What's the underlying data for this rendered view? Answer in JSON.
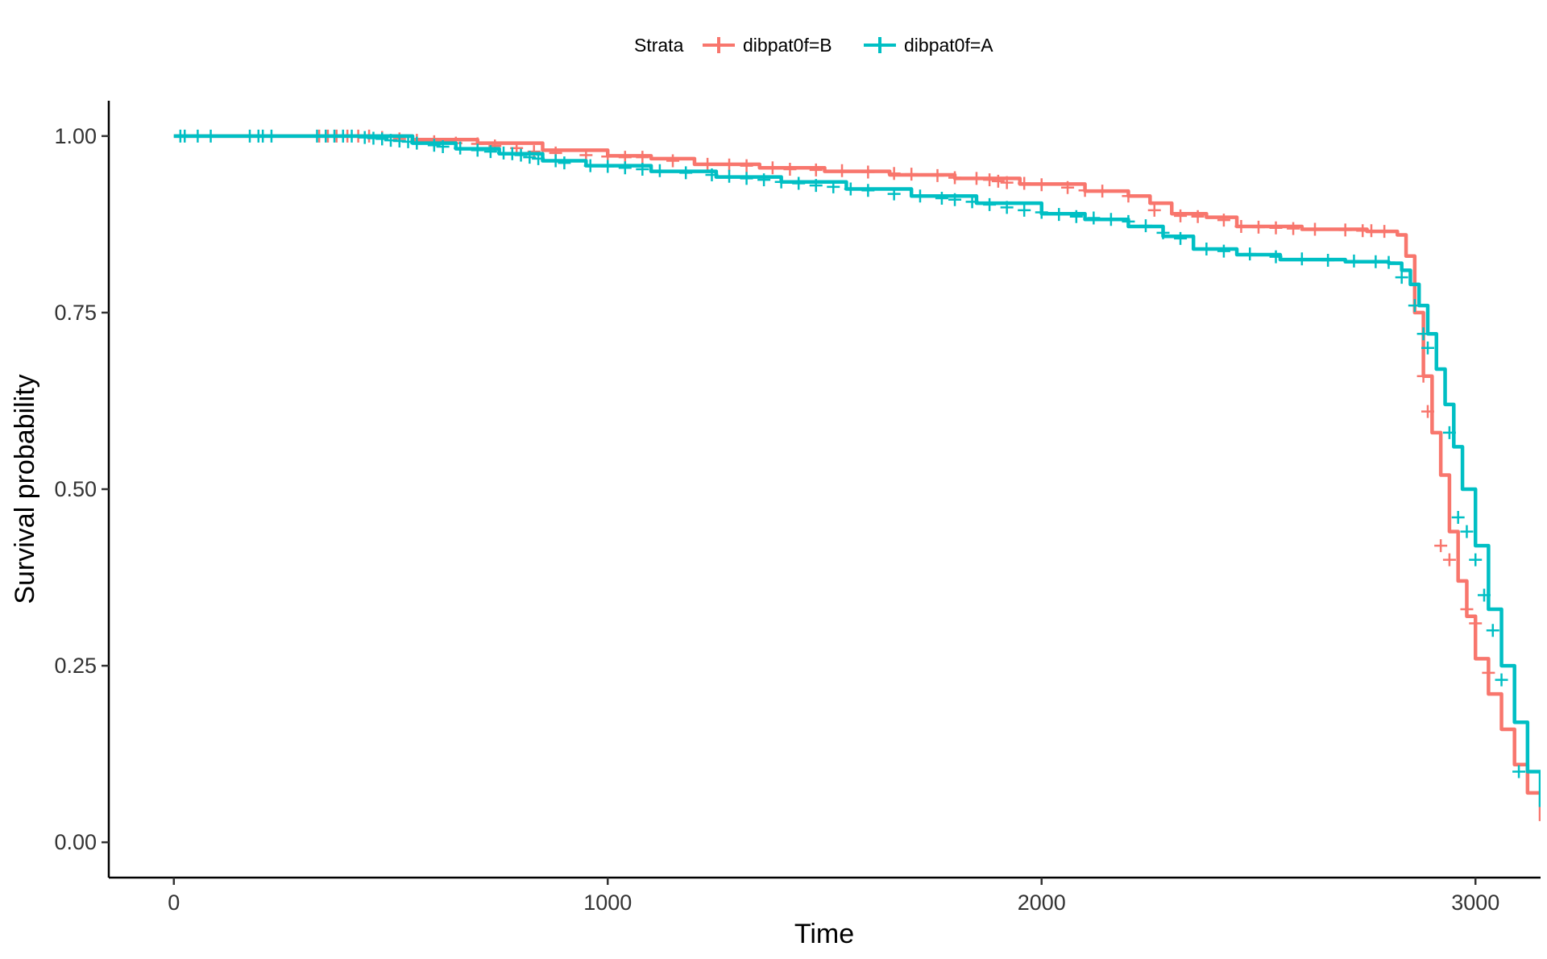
{
  "chart_data": {
    "type": "line",
    "subtype": "kaplan-meier survival curve",
    "xlabel": "Time",
    "ylabel": "Survival probability",
    "xlim": [
      -150,
      3150
    ],
    "ylim": [
      -0.05,
      1.05
    ],
    "xticks": [
      0,
      1000,
      2000,
      3000
    ],
    "xtick_labels": [
      "0",
      "1000",
      "2000",
      "3000"
    ],
    "yticks": [
      0,
      0.25,
      0.5,
      0.75,
      1.0
    ],
    "ytick_labels": [
      "0.00",
      "0.25",
      "0.50",
      "0.75",
      "1.00"
    ],
    "grid": false,
    "legend": {
      "title": "Strata",
      "position": "top"
    },
    "series": [
      {
        "name": "dibpat0f=B",
        "color": "#F8766D",
        "x": [
          0,
          450,
          550,
          700,
          850,
          1000,
          1100,
          1200,
          1350,
          1500,
          1650,
          1800,
          1950,
          2100,
          2200,
          2250,
          2300,
          2380,
          2450,
          2600,
          2750,
          2820,
          2840,
          2860,
          2880,
          2900,
          2920,
          2940,
          2960,
          2980,
          3000,
          3030,
          3060,
          3090,
          3120,
          3150
        ],
        "y": [
          1.0,
          1.0,
          0.995,
          0.99,
          0.98,
          0.972,
          0.968,
          0.96,
          0.955,
          0.95,
          0.945,
          0.94,
          0.932,
          0.922,
          0.915,
          0.905,
          0.89,
          0.885,
          0.872,
          0.868,
          0.865,
          0.86,
          0.83,
          0.75,
          0.66,
          0.58,
          0.52,
          0.44,
          0.37,
          0.32,
          0.26,
          0.21,
          0.16,
          0.11,
          0.07,
          0.03
        ],
        "censor_x": [
          335,
          355,
          375,
          400,
          425,
          450,
          480,
          520,
          560,
          600,
          650,
          700,
          740,
          790,
          830,
          880,
          950,
          1000,
          1040,
          1080,
          1150,
          1230,
          1280,
          1320,
          1380,
          1420,
          1480,
          1540,
          1600,
          1660,
          1700,
          1760,
          1800,
          1850,
          1880,
          1900,
          1920,
          1960,
          2000,
          2060,
          2100,
          2140,
          2200,
          2260,
          2320,
          2360,
          2420,
          2460,
          2500,
          2540,
          2580,
          2630,
          2700,
          2740,
          2760,
          2790,
          2880,
          2890,
          2920,
          2940,
          2980,
          3000,
          3030
        ],
        "censor_y": [
          1.0,
          1.0,
          1.0,
          1.0,
          1.0,
          1.0,
          0.998,
          0.996,
          0.994,
          0.992,
          0.99,
          0.989,
          0.986,
          0.983,
          0.978,
          0.976,
          0.973,
          0.971,
          0.97,
          0.97,
          0.965,
          0.96,
          0.959,
          0.958,
          0.955,
          0.953,
          0.952,
          0.951,
          0.949,
          0.947,
          0.946,
          0.944,
          0.941,
          0.94,
          0.938,
          0.936,
          0.934,
          0.933,
          0.931,
          0.927,
          0.923,
          0.922,
          0.915,
          0.895,
          0.887,
          0.886,
          0.881,
          0.872,
          0.871,
          0.87,
          0.869,
          0.868,
          0.867,
          0.866,
          0.866,
          0.865,
          0.66,
          0.61,
          0.42,
          0.4,
          0.33,
          0.31,
          0.24
        ]
      },
      {
        "name": "dibpat0f=A",
        "color": "#00BFC4",
        "x": [
          0,
          450,
          550,
          650,
          750,
          850,
          950,
          1100,
          1250,
          1400,
          1550,
          1700,
          1850,
          2000,
          2100,
          2200,
          2280,
          2350,
          2450,
          2550,
          2700,
          2800,
          2830,
          2850,
          2870,
          2890,
          2910,
          2930,
          2950,
          2970,
          3000,
          3030,
          3060,
          3090,
          3120,
          3150
        ],
        "y": [
          1.0,
          1.0,
          0.99,
          0.982,
          0.975,
          0.965,
          0.958,
          0.95,
          0.942,
          0.935,
          0.925,
          0.915,
          0.905,
          0.89,
          0.882,
          0.872,
          0.858,
          0.84,
          0.832,
          0.825,
          0.822,
          0.82,
          0.81,
          0.79,
          0.76,
          0.72,
          0.67,
          0.62,
          0.56,
          0.5,
          0.42,
          0.33,
          0.25,
          0.17,
          0.1,
          0.05
        ],
        "censor_x": [
          15,
          25,
          55,
          85,
          175,
          195,
          205,
          225,
          330,
          350,
          370,
          390,
          410,
          440,
          460,
          480,
          500,
          520,
          540,
          560,
          600,
          620,
          660,
          700,
          730,
          760,
          780,
          800,
          820,
          840,
          880,
          900,
          960,
          1000,
          1040,
          1080,
          1120,
          1180,
          1240,
          1280,
          1320,
          1360,
          1400,
          1440,
          1480,
          1520,
          1560,
          1600,
          1660,
          1720,
          1770,
          1800,
          1840,
          1880,
          1920,
          1960,
          2000,
          2040,
          2080,
          2120,
          2160,
          2200,
          2240,
          2280,
          2320,
          2380,
          2420,
          2480,
          2540,
          2600,
          2660,
          2720,
          2770,
          2800,
          2830,
          2860,
          2880,
          2890,
          2940,
          2960,
          2980,
          3000,
          3020,
          3040,
          3060,
          3100
        ],
        "censor_y": [
          1.0,
          1.0,
          1.0,
          1.0,
          1.0,
          1.0,
          1.0,
          1.0,
          1.0,
          1.0,
          1.0,
          1.0,
          1.0,
          0.998,
          0.997,
          0.996,
          0.994,
          0.993,
          0.992,
          0.99,
          0.987,
          0.985,
          0.983,
          0.98,
          0.978,
          0.976,
          0.975,
          0.973,
          0.97,
          0.968,
          0.965,
          0.962,
          0.958,
          0.957,
          0.955,
          0.953,
          0.951,
          0.948,
          0.945,
          0.943,
          0.94,
          0.938,
          0.935,
          0.933,
          0.93,
          0.928,
          0.925,
          0.923,
          0.918,
          0.915,
          0.912,
          0.91,
          0.907,
          0.903,
          0.899,
          0.895,
          0.892,
          0.889,
          0.886,
          0.884,
          0.882,
          0.879,
          0.873,
          0.863,
          0.855,
          0.84,
          0.837,
          0.833,
          0.829,
          0.826,
          0.824,
          0.823,
          0.822,
          0.821,
          0.8,
          0.76,
          0.72,
          0.7,
          0.58,
          0.46,
          0.44,
          0.4,
          0.35,
          0.3,
          0.23,
          0.1
        ]
      }
    ]
  }
}
